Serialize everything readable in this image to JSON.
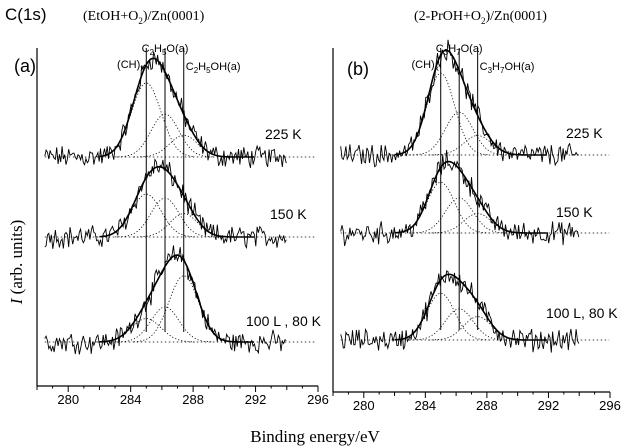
{
  "figure": {
    "core_level": "C(1s)",
    "xlabel": "Binding energy/eV",
    "ylabel_symbol": "I",
    "ylabel_rest": " (arb. units)"
  },
  "chart_data": [
    {
      "type": "line",
      "panel_label": "(a)",
      "title_main": "(EtOH+O",
      "title_sub": "2",
      "title_tail": ")/Zn(0001)",
      "xlim": [
        278,
        296
      ],
      "xticks": [
        280,
        284,
        288,
        292,
        296
      ],
      "grid": false,
      "reference_lines": [
        {
          "x": 285.0,
          "label": "(CH)",
          "label_sub": "x"
        },
        {
          "x": 286.2,
          "label": "C",
          "label_sub": "2",
          "label_mid": "H",
          "label_sub2": "5",
          "label_end": "O(a)"
        },
        {
          "x": 287.4,
          "label": "C",
          "label_sub": "2",
          "label_mid": "H",
          "label_sub2": "5",
          "label_end": "OH(a)"
        }
      ],
      "spectra": [
        {
          "name": "225 K",
          "baseline": 1.9,
          "x_start": 278.5,
          "x_end": 294.0,
          "peaks": [
            {
              "center": 285.0,
              "height": 0.95,
              "width": 0.95
            },
            {
              "center": 286.2,
              "height": 0.55,
              "width": 0.9
            },
            {
              "center": 287.4,
              "height": 0.28,
              "width": 0.9
            }
          ]
        },
        {
          "name": "150 K",
          "baseline": 1.15,
          "x_start": 278.5,
          "x_end": 294.0,
          "peaks": [
            {
              "center": 285.0,
              "height": 0.55,
              "width": 0.95
            },
            {
              "center": 286.2,
              "height": 0.5,
              "width": 0.9
            },
            {
              "center": 287.4,
              "height": 0.3,
              "width": 0.9
            }
          ]
        },
        {
          "name": "100 L , 80 K",
          "baseline": 0.0,
          "x_start": 278.5,
          "x_end": 294.0,
          "peaks": [
            {
              "center": 285.0,
              "height": 0.3,
              "width": 0.95
            },
            {
              "center": 286.2,
              "height": 0.45,
              "width": 0.9
            },
            {
              "center": 287.4,
              "height": 0.85,
              "width": 0.95
            }
          ]
        }
      ]
    },
    {
      "type": "line",
      "panel_label": "(b)",
      "title_main": "(2-PrOH+O",
      "title_sub": "2",
      "title_tail": ")/Zn(0001)",
      "xlim": [
        278,
        296
      ],
      "xticks": [
        280,
        284,
        288,
        292,
        296
      ],
      "grid": false,
      "reference_lines": [
        {
          "x": 285.0,
          "label": "(CH)",
          "label_sub": "x"
        },
        {
          "x": 286.2,
          "label": "C",
          "label_sub": "3",
          "label_mid": "H",
          "label_sub2": "7",
          "label_end": "O(a)"
        },
        {
          "x": 287.4,
          "label": "C",
          "label_sub": "3",
          "label_mid": "H",
          "label_sub2": "7",
          "label_end": "OH(a)"
        }
      ],
      "spectra": [
        {
          "name": "225 K",
          "baseline": 1.95,
          "x_start": 278.5,
          "x_end": 294.0,
          "peaks": [
            {
              "center": 285.0,
              "height": 1.05,
              "width": 0.9
            },
            {
              "center": 286.2,
              "height": 0.55,
              "width": 0.9
            },
            {
              "center": 287.4,
              "height": 0.25,
              "width": 0.9
            }
          ]
        },
        {
          "name": "150 K",
          "baseline": 1.1,
          "x_start": 278.5,
          "x_end": 294.0,
          "peaks": [
            {
              "center": 285.0,
              "height": 0.65,
              "width": 0.9
            },
            {
              "center": 286.2,
              "height": 0.45,
              "width": 0.9
            },
            {
              "center": 287.4,
              "height": 0.25,
              "width": 0.9
            }
          ]
        },
        {
          "name": "100 L, 80 K",
          "baseline": 0.0,
          "x_start": 278.5,
          "x_end": 294.0,
          "peaks": [
            {
              "center": 285.0,
              "height": 0.6,
              "width": 0.9
            },
            {
              "center": 286.2,
              "height": 0.4,
              "width": 0.9
            },
            {
              "center": 287.4,
              "height": 0.3,
              "width": 0.9
            }
          ]
        }
      ]
    }
  ]
}
